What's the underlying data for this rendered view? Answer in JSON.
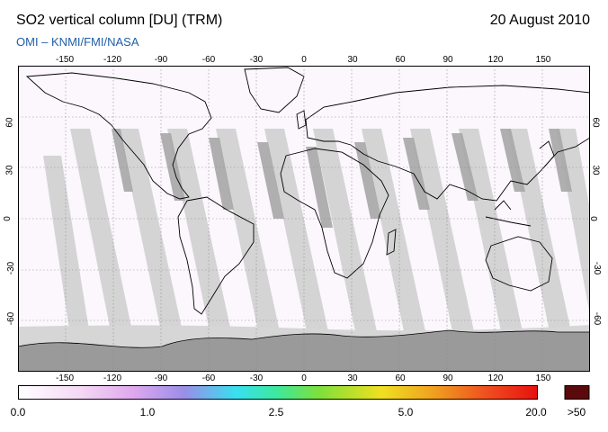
{
  "header": {
    "title": "SO2 vertical column [DU] (TRM)",
    "date": "20 August 2010",
    "subtitle": "OMI  –  KNMI/FMI/NASA"
  },
  "map": {
    "projection": "equirectangular",
    "lon_range": [
      -180,
      180
    ],
    "lat_range": [
      -90,
      90
    ],
    "lon_ticks": [
      "-150",
      "-120",
      "-90",
      "-60",
      "-30",
      "0",
      "30",
      "60",
      "90",
      "120",
      "150"
    ],
    "lat_ticks": [
      "60",
      "30",
      "0",
      "-30",
      "-60"
    ],
    "colors": {
      "background": "#fbf7fd",
      "no_data_gap": "#d3d3d3",
      "no_data_dark": "#a8a8a8",
      "antarctica": "#9a9a9a",
      "coastline": "#000000",
      "gridline": "#8a8a8a"
    }
  },
  "colorbar": {
    "labels": [
      "0.0",
      "1.0",
      "2.5",
      "5.0",
      "20.0",
      ">50"
    ],
    "stops": [
      "#ffffff",
      "#f4d8f4",
      "#e0a8ee",
      "#9a8ee8",
      "#38e0f0",
      "#3ee89a",
      "#7fe03a",
      "#f0e020",
      "#f0a020",
      "#f05020",
      "#e81010"
    ],
    "overflow_color": "#5a0a0a"
  }
}
